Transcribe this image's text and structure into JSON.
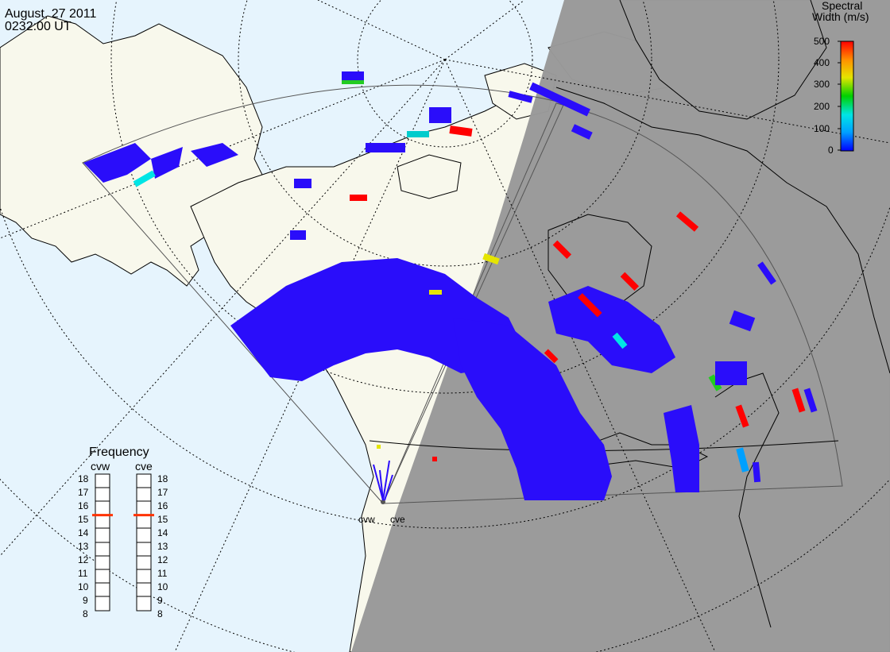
{
  "header": {
    "date": "August, 27 2011",
    "time": "0232:00 UT"
  },
  "colorbar": {
    "title_line1": "Spectral",
    "title_line2": "Width (m/s)",
    "ticks": [
      "500",
      "400",
      "300",
      "200",
      "100",
      "0"
    ],
    "range": [
      0,
      500
    ],
    "colors": [
      "#0000ff",
      "#00a0ff",
      "#00e5e5",
      "#00d000",
      "#e5e500",
      "#ff9000",
      "#ff0000"
    ]
  },
  "frequency_panel": {
    "title": "Frequency",
    "radars": [
      {
        "name": "cvw",
        "frequency_mhz": 15
      },
      {
        "name": "cve",
        "frequency_mhz": 15
      }
    ],
    "ticks": [
      "18",
      "17",
      "16",
      "15",
      "14",
      "13",
      "12",
      "11",
      "10",
      "9",
      "8"
    ],
    "range_mhz": [
      8,
      18
    ],
    "marker_color": "#ff3300"
  },
  "map": {
    "radar_site_labels": [
      "cvw",
      "cve"
    ],
    "night_shade_color": "#999999",
    "land_color": "#f8f8ec",
    "ocean_color": "#e6f4fd",
    "scatter_color_main": "#2a0dfa"
  }
}
